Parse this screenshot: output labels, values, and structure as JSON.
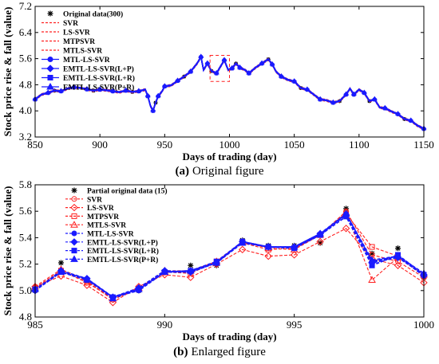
{
  "chart_data": [
    {
      "panel": "a",
      "type": "line",
      "caption_label": "(a)",
      "caption_text": "Original figure",
      "xlabel": "Days of trading (day)",
      "ylabel": "Stock price rise & fall (value)",
      "xlim": [
        850,
        1150
      ],
      "ylim": [
        3.2,
        7.2
      ],
      "xticks": [
        850,
        900,
        950,
        1000,
        1050,
        1100,
        1150
      ],
      "yticks": [
        3.2,
        4.0,
        4.8,
        5.6,
        6.4,
        7.2
      ],
      "legend_position": "top-left",
      "highlight_box": {
        "x": [
          985,
          1000
        ],
        "y": [
          4.9,
          5.7
        ]
      },
      "series": [
        {
          "name": "Original data(300)",
          "color": "#000000",
          "style": "markers",
          "marker": "star"
        },
        {
          "name": "SVR",
          "color": "#ff2020",
          "style": "dashed"
        },
        {
          "name": "LS-SVR",
          "color": "#ff2020",
          "style": "dashed"
        },
        {
          "name": "MTPSVR",
          "color": "#ff2020",
          "style": "dashed"
        },
        {
          "name": "MTLS-SVR",
          "color": "#ff2020",
          "style": "dashed"
        },
        {
          "name": "MTL-LS-SVR",
          "color": "#1a1aff",
          "style": "solid",
          "marker": "circle"
        },
        {
          "name": "EMTL-LS-SVR(L+P)",
          "color": "#1a1aff",
          "style": "solid",
          "marker": "diamond"
        },
        {
          "name": "EMTL-LS-SVR(L+R)",
          "color": "#1a1aff",
          "style": "solid",
          "marker": "square"
        },
        {
          "name": "EMTL-LS-SVR(P+R)",
          "color": "#1a1aff",
          "style": "solid",
          "marker": "triangle"
        }
      ],
      "curve": {
        "x": [
          850,
          855,
          860,
          865,
          870,
          875,
          880,
          885,
          890,
          895,
          900,
          905,
          910,
          915,
          920,
          925,
          930,
          935,
          937,
          939,
          941,
          943,
          945,
          948,
          950,
          955,
          960,
          965,
          970,
          975,
          978,
          980,
          983,
          986,
          990,
          993,
          996,
          999,
          1002,
          1005,
          1008,
          1012,
          1015,
          1020,
          1025,
          1030,
          1033,
          1036,
          1040,
          1045,
          1050,
          1055,
          1060,
          1065,
          1070,
          1075,
          1080,
          1085,
          1090,
          1093,
          1096,
          1100,
          1104,
          1108,
          1112,
          1116,
          1120,
          1125,
          1130,
          1135,
          1140,
          1145,
          1150
        ],
        "y": [
          4.35,
          4.5,
          4.55,
          4.62,
          4.6,
          4.68,
          4.72,
          4.7,
          4.66,
          4.62,
          4.65,
          4.63,
          4.6,
          4.57,
          4.62,
          4.58,
          4.6,
          4.65,
          4.45,
          4.15,
          4.0,
          4.25,
          4.45,
          4.6,
          4.75,
          4.78,
          4.92,
          5.05,
          5.2,
          5.45,
          5.65,
          5.25,
          5.45,
          5.22,
          5.15,
          5.35,
          5.55,
          5.25,
          5.3,
          5.45,
          5.32,
          5.25,
          5.15,
          5.32,
          5.45,
          5.58,
          5.42,
          5.2,
          5.05,
          4.95,
          4.9,
          4.7,
          4.65,
          4.5,
          4.35,
          4.32,
          4.25,
          4.3,
          4.5,
          4.68,
          4.5,
          4.65,
          4.55,
          4.3,
          4.35,
          4.1,
          4.08,
          3.98,
          3.9,
          3.75,
          3.7,
          3.55,
          3.45
        ]
      }
    },
    {
      "panel": "b",
      "type": "line",
      "caption_label": "(b)",
      "caption_text": "Enlarged figure",
      "xlabel": "Days of trading (day)",
      "ylabel": "Stock price rise & fall (value)",
      "xlim": [
        985,
        1000
      ],
      "ylim": [
        4.8,
        5.8
      ],
      "xticks": [
        985,
        990,
        995,
        1000
      ],
      "yticks": [
        4.8,
        5.0,
        5.2,
        5.4,
        5.6,
        5.8
      ],
      "legend_position": "top-left",
      "x": [
        985,
        986,
        987,
        988,
        989,
        990,
        991,
        992,
        993,
        994,
        995,
        996,
        997,
        998,
        999,
        1000
      ],
      "series": [
        {
          "name": "Partial original data (15)",
          "color": "#000000",
          "style": "markers",
          "marker": "star",
          "values": [
            5.0,
            5.21,
            5.08,
            4.95,
            5.0,
            5.14,
            5.19,
            5.19,
            5.38,
            5.34,
            5.34,
            5.36,
            5.62,
            5.28,
            5.32,
            5.1
          ]
        },
        {
          "name": "SVR",
          "color": "#ff2020",
          "style": "dashed",
          "marker": "circle",
          "values": [
            5.02,
            5.15,
            5.07,
            4.93,
            5.02,
            5.14,
            5.14,
            5.22,
            5.36,
            5.33,
            5.33,
            5.42,
            5.6,
            5.27,
            5.22,
            5.1
          ]
        },
        {
          "name": "LS-SVR",
          "color": "#ff2020",
          "style": "dashed",
          "marker": "diamond",
          "values": [
            5.03,
            5.11,
            5.04,
            4.91,
            5.03,
            5.12,
            5.1,
            5.2,
            5.31,
            5.26,
            5.27,
            5.37,
            5.47,
            5.24,
            5.19,
            5.06
          ]
        },
        {
          "name": "MTPSVR",
          "color": "#ff2020",
          "style": "dashed",
          "marker": "square",
          "values": [
            5.01,
            5.15,
            5.06,
            4.94,
            5.01,
            5.14,
            5.13,
            5.22,
            5.36,
            5.31,
            5.32,
            5.42,
            5.58,
            5.33,
            5.26,
            5.11
          ]
        },
        {
          "name": "MTLS-SVR",
          "color": "#ff2020",
          "style": "dashed",
          "marker": "triangle",
          "values": [
            5.03,
            5.16,
            5.08,
            4.94,
            5.02,
            5.15,
            5.15,
            5.22,
            5.37,
            5.32,
            5.31,
            5.42,
            5.59,
            5.08,
            5.25,
            5.12
          ]
        },
        {
          "name": "MTL-LS-SVR",
          "color": "#1a1aff",
          "style": "dashed",
          "marker": "circle",
          "values": [
            5.0,
            5.14,
            5.09,
            4.95,
            5.0,
            5.14,
            5.14,
            5.21,
            5.37,
            5.33,
            5.33,
            5.42,
            5.58,
            5.22,
            5.26,
            5.11
          ]
        },
        {
          "name": "EMTL-LS-SVR(L+P)",
          "color": "#1a1aff",
          "style": "dashed",
          "marker": "diamond",
          "values": [
            5.0,
            5.15,
            5.09,
            4.95,
            5.02,
            5.15,
            5.14,
            5.21,
            5.37,
            5.33,
            5.33,
            5.43,
            5.57,
            5.21,
            5.25,
            5.12
          ]
        },
        {
          "name": "EMTL-LS-SVR(L+R)",
          "color": "#1a1aff",
          "style": "dashed",
          "marker": "square",
          "values": [
            5.01,
            5.14,
            5.08,
            4.95,
            5.01,
            5.14,
            5.15,
            5.22,
            5.37,
            5.33,
            5.32,
            5.42,
            5.56,
            5.19,
            5.27,
            5.12
          ]
        },
        {
          "name": "EMTL-LS-SVR(P+R)",
          "color": "#1a1aff",
          "style": "dashed",
          "marker": "triangle",
          "values": [
            5.01,
            5.14,
            5.09,
            4.94,
            5.01,
            5.14,
            5.15,
            5.21,
            5.36,
            5.33,
            5.33,
            5.43,
            5.58,
            5.23,
            5.26,
            5.13
          ]
        }
      ]
    }
  ]
}
